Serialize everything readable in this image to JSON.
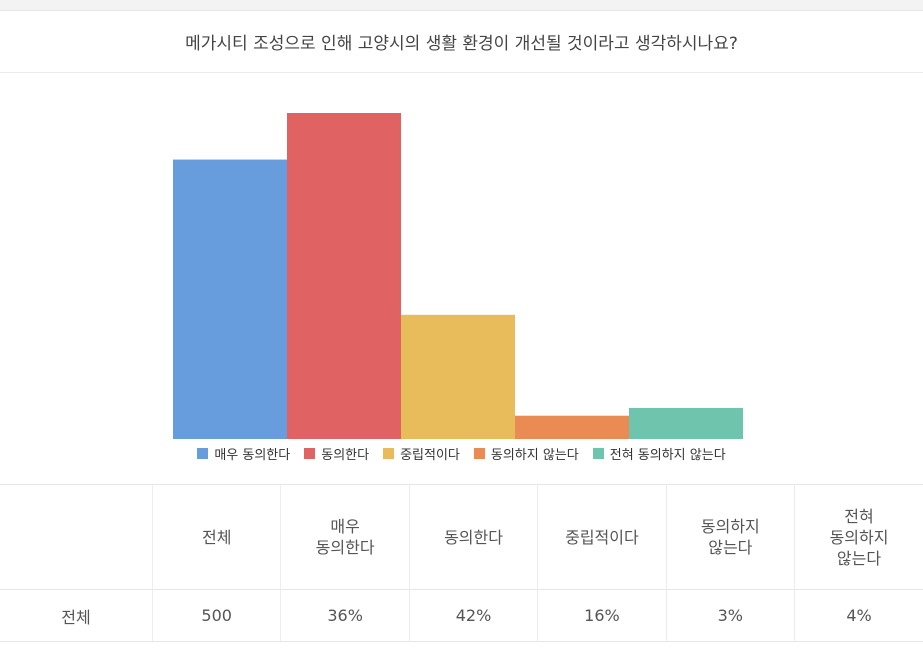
{
  "question": "메가시티 조성으로 인해 고양시의 생활 환경이 개선될 것이라고 생각하시나요?",
  "chart_data": {
    "type": "bar",
    "categories": [
      "매우 동의한다",
      "동의한다",
      "중립적이다",
      "동의하지 않는다",
      "전혀 동의하지 않는다"
    ],
    "values": [
      36,
      42,
      16,
      3,
      4
    ],
    "colors": [
      "#679cdd",
      "#e06262",
      "#e8bc5a",
      "#e98b53",
      "#6fc4ae"
    ],
    "ylim": [
      0,
      42
    ],
    "legend_position": "bottom"
  },
  "table": {
    "headers": [
      "",
      "전체",
      "매우\n동의한다",
      "동의한다",
      "중립적이다",
      "동의하지\n않는다",
      "전혀\n동의하지\n않는다"
    ],
    "rows": [
      [
        "전체",
        "500",
        "36%",
        "42%",
        "16%",
        "3%",
        "4%"
      ]
    ]
  }
}
